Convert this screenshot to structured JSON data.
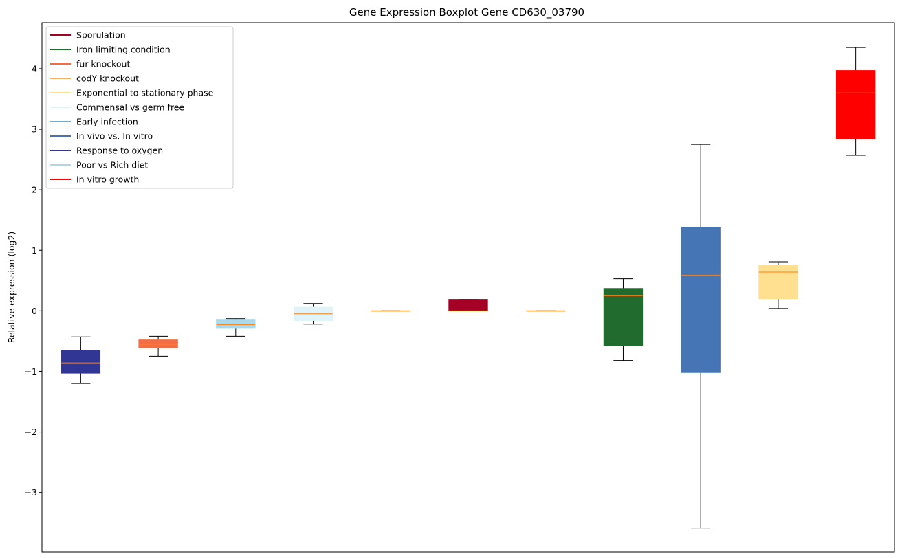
{
  "chart_data": {
    "type": "boxplot",
    "title": "Gene Expression Boxplot Gene CD630_03790",
    "ylabel": "Relative expression (log2)",
    "xlabel": "",
    "ylim": [
      -3.98,
      4.76
    ],
    "yticks": [
      -3,
      -2,
      -1,
      0,
      1,
      2,
      3,
      4
    ],
    "ytick_labels": [
      "−3",
      "−2",
      "−1",
      "0",
      "1",
      "2",
      "3",
      "4"
    ],
    "grid": false,
    "legend_position": "top-left",
    "median_color": "#ff7f0e",
    "whisker_color": "#000000",
    "legend": [
      {
        "label": "Sporulation",
        "color": "#a50026"
      },
      {
        "label": "Iron limiting condition",
        "color": "#226b2e"
      },
      {
        "label": "fur knockout",
        "color": "#f46d43"
      },
      {
        "label": "codY knockout",
        "color": "#fdae61"
      },
      {
        "label": "Exponential to stationary phase",
        "color": "#fee090"
      },
      {
        "label": "Commensal vs germ free",
        "color": "#e0f3f8"
      },
      {
        "label": "Early infection",
        "color": "#74add1"
      },
      {
        "label": "In vivo vs. In vitro",
        "color": "#4575b4"
      },
      {
        "label": "Response to oxygen",
        "color": "#313695"
      },
      {
        "label": "Poor vs Rich diet",
        "color": "#abd9e9"
      },
      {
        "label": "In vitro growth",
        "color": "#ff0000"
      }
    ],
    "boxes": [
      {
        "series": "Response to oxygen",
        "color": "#313695",
        "whisker_low": -1.2,
        "q1": -1.03,
        "median": -0.86,
        "q3": -0.65,
        "whisker_high": -0.43
      },
      {
        "series": "fur knockout",
        "color": "#f46d43",
        "whisker_low": -0.75,
        "q1": -0.61,
        "median": -0.56,
        "q3": -0.48,
        "whisker_high": -0.42
      },
      {
        "series": "Poor vs Rich diet",
        "color": "#abd9e9",
        "whisker_low": -0.42,
        "q1": -0.29,
        "median": -0.23,
        "q3": -0.14,
        "whisker_high": -0.13
      },
      {
        "series": "Commensal vs germ free",
        "color": "#e0f3f8",
        "whisker_low": -0.22,
        "q1": -0.16,
        "median": -0.05,
        "q3": 0.06,
        "whisker_high": 0.12
      },
      {
        "series": "codY knockout",
        "color": "#fdae61",
        "whisker_low": 0.0,
        "q1": 0.0,
        "median": 0.0,
        "q3": 0.0,
        "whisker_high": 0.0
      },
      {
        "series": "Sporulation",
        "color": "#a50026",
        "whisker_low": 0.0,
        "q1": 0.0,
        "median": 0.0,
        "q3": 0.19,
        "whisker_high": 0.19
      },
      {
        "series": "codY knockout",
        "color": "#fdae61",
        "whisker_low": 0.0,
        "q1": 0.0,
        "median": 0.0,
        "q3": 0.0,
        "whisker_high": 0.0
      },
      {
        "series": "Iron limiting condition",
        "color": "#226b2e",
        "whisker_low": -0.82,
        "q1": -0.58,
        "median": 0.25,
        "q3": 0.37,
        "whisker_high": 0.53
      },
      {
        "series": "In vivo vs. In vitro",
        "color": "#4575b4",
        "whisker_low": -3.59,
        "q1": -1.02,
        "median": 0.59,
        "q3": 1.38,
        "whisker_high": 2.75
      },
      {
        "series": "Exponential to stationary phase",
        "color": "#fee090",
        "whisker_low": 0.04,
        "q1": 0.2,
        "median": 0.64,
        "q3": 0.75,
        "whisker_high": 0.81
      },
      {
        "series": "In vitro growth",
        "color": "#ff0000",
        "whisker_low": 2.57,
        "q1": 2.84,
        "median": 3.6,
        "q3": 3.97,
        "whisker_high": 4.35
      }
    ]
  }
}
